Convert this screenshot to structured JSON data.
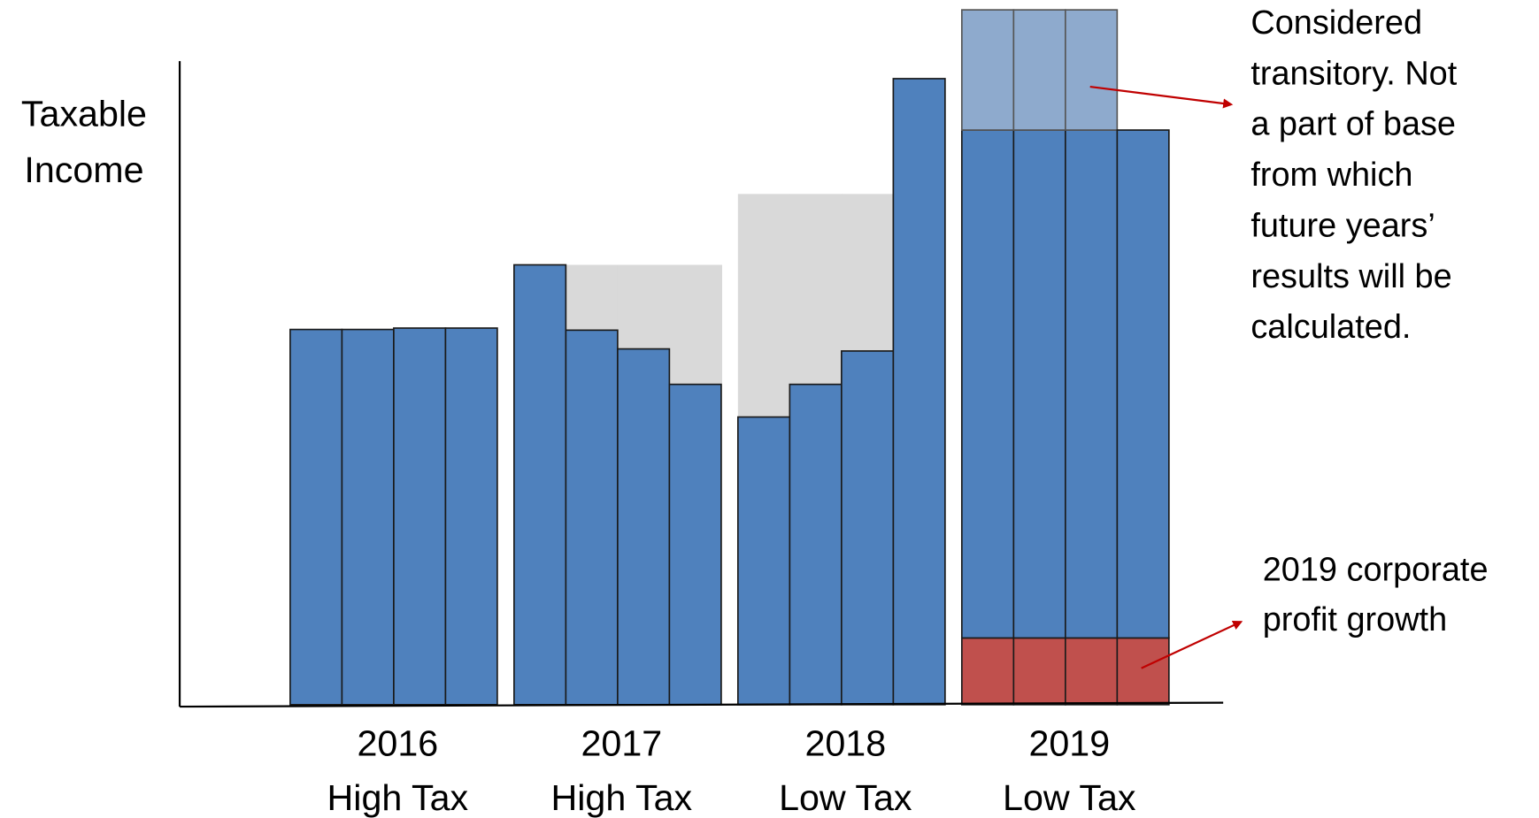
{
  "chart_data": {
    "type": "bar",
    "stacked": true,
    "y_label": [
      "Taxable",
      "Income"
    ],
    "categories": [
      null,
      null,
      null,
      null,
      null,
      null,
      null,
      null,
      null,
      null,
      null,
      null,
      null,
      null,
      null,
      null
    ],
    "groups": [
      {
        "year": "2016",
        "regime": "High Tax"
      },
      {
        "year": "2017",
        "regime": "High Tax"
      },
      {
        "year": "2018",
        "regime": "Low Tax"
      },
      {
        "year": "2019",
        "regime": "Low Tax"
      }
    ],
    "ylim": [
      0,
      100
    ],
    "series": [
      {
        "color": "#c0504d",
        "values": [
          null,
          null,
          null,
          null,
          null,
          null,
          null,
          null,
          null,
          null,
          null,
          null,
          9.6,
          9.6,
          9.6,
          9.6
        ]
      },
      {
        "color": "#4f81bd",
        "values": [
          54,
          54,
          54.2,
          54.2,
          63.3,
          53.9,
          51.2,
          46.1,
          41.4,
          46.1,
          50.9,
          90.1,
          73.1,
          73.1,
          73.1,
          73.1
        ]
      },
      {
        "color": "#8eaacd",
        "values": [
          null,
          null,
          null,
          null,
          null,
          null,
          null,
          null,
          null,
          null,
          null,
          null,
          17.3,
          17.3,
          17.3,
          null
        ]
      }
    ],
    "background_levels": {
      "color": "#d9d9d9",
      "values": [
        null,
        null,
        null,
        null,
        null,
        63.3,
        63.3,
        63.3,
        73.5,
        73.5,
        73.5,
        null,
        null,
        null,
        null,
        null
      ]
    },
    "annotations": [
      {
        "lines": [
          "Considered",
          "transitory. Not",
          "a part of base",
          "from which",
          "future years’",
          "results will be",
          "calculated."
        ]
      },
      {
        "lines": [
          "2019 corporate",
          "profit growth"
        ]
      }
    ]
  }
}
